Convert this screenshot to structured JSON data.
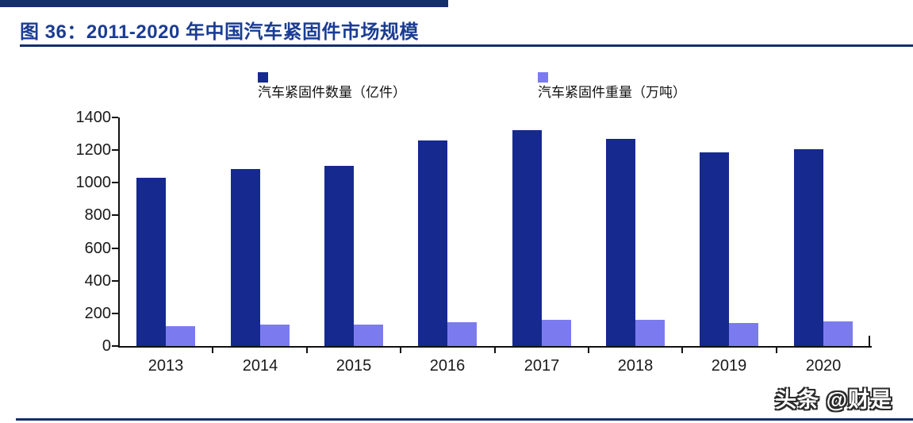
{
  "figure": {
    "title": "图 36：2011-2020 年中国汽车紧固件市场规模",
    "watermark": "头条 @财是"
  },
  "colors": {
    "accent_navy": "#142E6E",
    "title_blue": "#1B3C94",
    "bar_dark": "#16298E",
    "bar_light": "#7B7BEF",
    "axis": "#111111"
  },
  "chart_data": {
    "type": "bar",
    "title": "图 36：2011-2020 年中国汽车紧固件市场规模",
    "categories": [
      "2013",
      "2014",
      "2015",
      "2016",
      "2017",
      "2018",
      "2019",
      "2020"
    ],
    "series": [
      {
        "name": "汽车紧固件数量（亿件）",
        "color": "#16298E",
        "values": [
          1030,
          1085,
          1105,
          1260,
          1320,
          1270,
          1185,
          1205
        ]
      },
      {
        "name": "汽车紧固件重量（万吨）",
        "color": "#7B7BEF",
        "values": [
          120,
          130,
          130,
          145,
          160,
          160,
          140,
          150
        ]
      }
    ],
    "xlabel": "",
    "ylabel": "",
    "ylim": [
      0,
      1400
    ],
    "yticks": [
      0,
      200,
      400,
      600,
      800,
      1000,
      1200,
      1400
    ],
    "legend_position": "top",
    "grid": false
  }
}
